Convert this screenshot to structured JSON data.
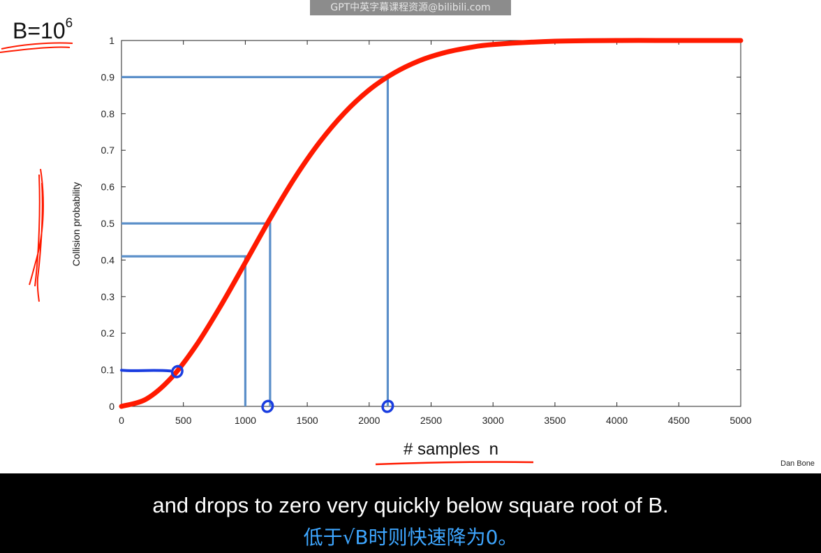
{
  "watermark": "GPT中英字幕课程资源@bilibili.com",
  "annotation": {
    "base": "B=10",
    "exponent": "6"
  },
  "credit": "Dan Bone",
  "captions": {
    "en": "and drops to zero very quickly below square root of B.",
    "zh": "低于√B时则快速降为0。"
  },
  "colors": {
    "curve": "#ff1a00",
    "guides": "#5b8fc9",
    "marker": "#1a3de0",
    "ink_red": "#ff1a00"
  },
  "chart_data": {
    "type": "line",
    "title": "",
    "xlabel": "# samples  n",
    "ylabel": "Collision probability",
    "xlim": [
      0,
      5000
    ],
    "ylim": [
      0,
      1
    ],
    "x_ticks": [
      0,
      500,
      1000,
      1500,
      2000,
      2500,
      3000,
      3500,
      4000,
      4500,
      5000
    ],
    "y_ticks": [
      0,
      0.1,
      0.2,
      0.3,
      0.4,
      0.5,
      0.6,
      0.7,
      0.8,
      0.9,
      1
    ],
    "y_tick_labels": [
      "0",
      "0.1",
      "0.2",
      "0.3",
      "0.4",
      "0.5",
      "0.6",
      "0.7",
      "0.8",
      "0.9",
      "1"
    ],
    "grid": false,
    "series": [
      {
        "x": [
          0,
          200,
          400,
          600,
          800,
          1000,
          1200,
          1400,
          1600,
          1800,
          2000,
          2200,
          2400,
          2600,
          2800,
          3000,
          3500,
          4000,
          4500,
          5000
        ],
        "y": [
          0,
          0.02,
          0.077,
          0.165,
          0.274,
          0.393,
          0.513,
          0.625,
          0.722,
          0.802,
          0.865,
          0.911,
          0.944,
          0.966,
          0.98,
          0.989,
          0.998,
          1.0,
          1.0,
          1.0
        ]
      }
    ],
    "guide_lines": [
      {
        "x": 1000,
        "y": 0.41
      },
      {
        "x": 1200,
        "y": 0.5
      },
      {
        "x": 2150,
        "y": 0.9
      }
    ],
    "highlight_points": [
      {
        "x": 450,
        "y": 0.095
      },
      {
        "x": 1180,
        "y": 0
      },
      {
        "x": 2150,
        "y": 0
      }
    ]
  }
}
